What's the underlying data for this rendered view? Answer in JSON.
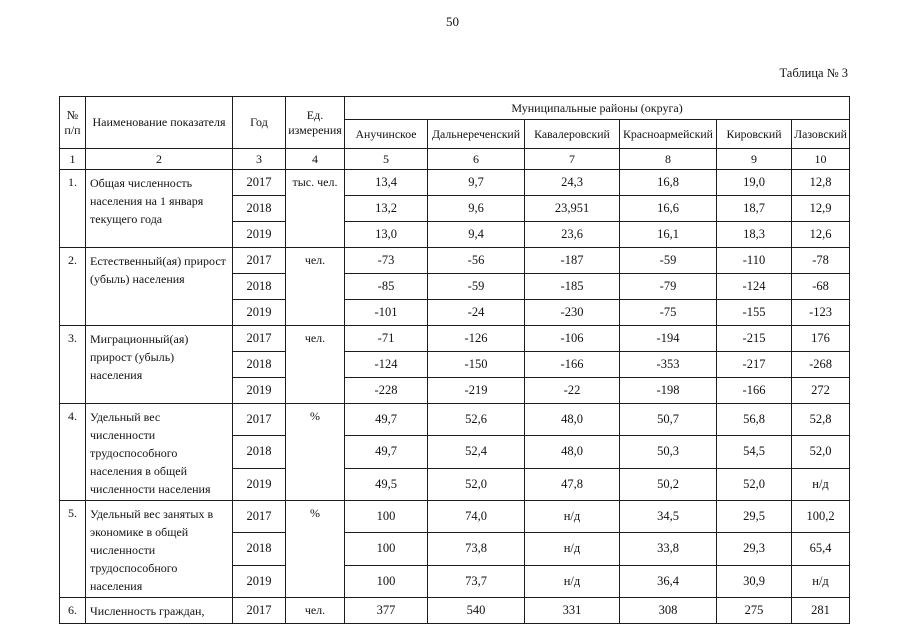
{
  "page": {
    "number": "50",
    "table_caption": "Таблица № 3"
  },
  "table": {
    "headers": {
      "num": "№ п/п",
      "indicator": "Наименование показателя",
      "year": "Год",
      "unit": "Ед. измерения",
      "districts_group": "Муниципальные районы (округа)",
      "districts": [
        "Анучинское",
        "Дальнереченский",
        "Кавалеровский",
        "Красноармейский",
        "Кировский",
        "Лазовский"
      ],
      "column_numbers": [
        "1",
        "2",
        "3",
        "4",
        "5",
        "6",
        "7",
        "8",
        "9",
        "10"
      ]
    },
    "indicators": [
      {
        "num": "1.",
        "name": "Общая численность населения на 1 января текущего года",
        "unit": "тыс. чел.",
        "rows": [
          {
            "year": "2017",
            "values": [
              "13,4",
              "9,7",
              "24,3",
              "16,8",
              "19,0",
              "12,8"
            ]
          },
          {
            "year": "2018",
            "values": [
              "13,2",
              "9,6",
              "23,951",
              "16,6",
              "18,7",
              "12,9"
            ]
          },
          {
            "year": "2019",
            "values": [
              "13,0",
              "9,4",
              "23,6",
              "16,1",
              "18,3",
              "12,6"
            ]
          }
        ]
      },
      {
        "num": "2.",
        "name": "Естественный(ая) прирост (убыль) населения",
        "unit": "чел.",
        "rows": [
          {
            "year": "2017",
            "values": [
              "-73",
              "-56",
              "-187",
              "-59",
              "-110",
              "-78"
            ]
          },
          {
            "year": "2018",
            "values": [
              "-85",
              "-59",
              "-185",
              "-79",
              "-124",
              "-68"
            ]
          },
          {
            "year": "2019",
            "values": [
              "-101",
              "-24",
              "-230",
              "-75",
              "-155",
              "-123"
            ]
          }
        ]
      },
      {
        "num": "3.",
        "name": "Миграционный(ая) прирост (убыль) населения",
        "unit": "чел.",
        "rows": [
          {
            "year": "2017",
            "values": [
              "-71",
              "-126",
              "-106",
              "-194",
              "-215",
              "176"
            ]
          },
          {
            "year": "2018",
            "values": [
              "-124",
              "-150",
              "-166",
              "-353",
              "-217",
              "-268"
            ]
          },
          {
            "year": "2019",
            "values": [
              "-228",
              "-219",
              "-22",
              "-198",
              "-166",
              "272"
            ]
          }
        ]
      },
      {
        "num": "4.",
        "name": "Удельный вес численности трудоспособного населения в общей численности населения",
        "unit": "%",
        "rows": [
          {
            "year": "2017",
            "values": [
              "49,7",
              "52,6",
              "48,0",
              "50,7",
              "56,8",
              "52,8"
            ]
          },
          {
            "year": "2018",
            "values": [
              "49,7",
              "52,4",
              "48,0",
              "50,3",
              "54,5",
              "52,0"
            ]
          },
          {
            "year": "2019",
            "values": [
              "49,5",
              "52,0",
              "47,8",
              "50,2",
              "52,0",
              "н/д"
            ]
          }
        ]
      },
      {
        "num": "5.",
        "name": "Удельный вес занятых в экономике в общей численности трудоспособного населения",
        "unit": "%",
        "rows": [
          {
            "year": "2017",
            "values": [
              "100",
              "74,0",
              "н/д",
              "34,5",
              "29,5",
              "100,2"
            ]
          },
          {
            "year": "2018",
            "values": [
              "100",
              "73,8",
              "н/д",
              "33,8",
              "29,3",
              "65,4"
            ]
          },
          {
            "year": "2019",
            "values": [
              "100",
              "73,7",
              "н/д",
              "36,4",
              "30,9",
              "н/д"
            ]
          }
        ]
      },
      {
        "num": "6.",
        "name": "Численность граждан,",
        "unit": "чел.",
        "rows": [
          {
            "year": "2017",
            "values": [
              "377",
              "540",
              "331",
              "308",
              "275",
              "281"
            ]
          }
        ]
      }
    ]
  }
}
